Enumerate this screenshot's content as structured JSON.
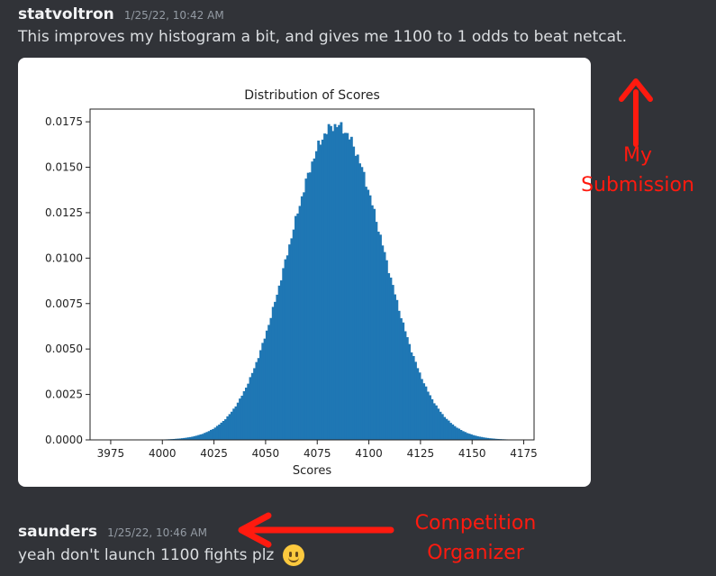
{
  "messages": [
    {
      "username": "statvoltron",
      "timestamp": "1/25/22, 10:42 AM",
      "text": "This improves my histogram a bit, and gives me 1100 to 1 odds to beat netcat."
    },
    {
      "username": "saunders",
      "timestamp": "1/25/22, 10:46 AM",
      "text": "yeah don't launch 1100 fights plz",
      "emoji": "slightly-smiling-face-icon"
    }
  ],
  "annotations": {
    "submission": [
      "My",
      "Submission"
    ],
    "organizer": [
      "Competition",
      "Organizer"
    ],
    "color": "#ff1a0f"
  },
  "colors": {
    "background": "#313338",
    "bar": "#1f77b4"
  },
  "chart_data": {
    "type": "bar",
    "title": "Distribution of Scores",
    "xlabel": "Scores",
    "ylabel": "",
    "xlim": [
      3965,
      4180
    ],
    "ylim": [
      0,
      0.0182
    ],
    "xticks": [
      3975,
      4000,
      4025,
      4050,
      4075,
      4100,
      4125,
      4150,
      4175
    ],
    "yticks": [
      0.0,
      0.0025,
      0.005,
      0.0075,
      0.01,
      0.0125,
      0.015,
      0.0175
    ],
    "ytick_labels": [
      "0.0000",
      "0.0025",
      "0.0050",
      "0.0075",
      "0.0100",
      "0.0125",
      "0.0150",
      "0.0175"
    ],
    "distribution_shape": "approximately normal",
    "x_range": [
      3995,
      4170
    ],
    "peak_x": 4084,
    "peak_density": 0.0173,
    "spread_sd": 23,
    "grid": false
  }
}
